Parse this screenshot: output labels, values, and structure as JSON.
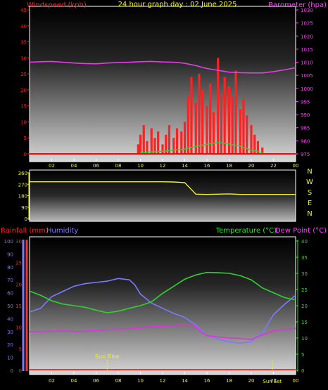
{
  "page": {
    "title": "24 hour graph day : 02 June 2025"
  },
  "colors": {
    "wind": "#ff0000",
    "gust": "#ff2020",
    "avg_wind": "#30d030",
    "barometer": "#e040e0",
    "direction": "#f0f030",
    "rain": "#ff3030",
    "humidity": "#7a7aff",
    "temperature": "#30d030",
    "dewpoint": "#e030e0",
    "sun": "#f0f030",
    "axis_text_left_red": "#ff2020",
    "axis_text_right_magenta": "#ff40ff",
    "axis_text_green": "#30e030",
    "axis_text_blue": "#7a7aff",
    "time_text": "#f0f030"
  },
  "chart_data": [
    {
      "type": "line",
      "name": "wind-barometer",
      "title": "24 hour graph day : 02 June 2025",
      "ylabel_left": "Windspeed (kph)",
      "ylabel_right": "Barometer (hpa)",
      "x_ticks": [
        "02",
        "04",
        "06",
        "08",
        "10",
        "12",
        "14",
        "16",
        "18",
        "20",
        "22",
        "00"
      ],
      "y_left_ticks": [
        0,
        5,
        10,
        15,
        20,
        25,
        30,
        35,
        40,
        45
      ],
      "y_left_range": [
        0,
        45
      ],
      "y_right_ticks": [
        975,
        980,
        985,
        990,
        995,
        1000,
        1005,
        1010,
        1015,
        1020,
        1025,
        1030
      ],
      "y_right_range": [
        975,
        1030
      ],
      "x_range": [
        0,
        24
      ],
      "series": [
        {
          "name": "Barometer",
          "axis": "right",
          "x": [
            0,
            1,
            2,
            3,
            4,
            5,
            6,
            7,
            8,
            9,
            10,
            11,
            12,
            13,
            14,
            15,
            16,
            17,
            18,
            19,
            20,
            21,
            22,
            23,
            24
          ],
          "values": [
            1010.0,
            1010.2,
            1010.3,
            1010.0,
            1009.7,
            1009.5,
            1009.4,
            1009.7,
            1009.9,
            1010.0,
            1010.2,
            1010.3,
            1010.1,
            1010.0,
            1009.6,
            1008.7,
            1007.6,
            1006.9,
            1006.2,
            1006.0,
            1005.9,
            1005.9,
            1006.4,
            1007.1,
            1007.9
          ]
        },
        {
          "name": "Wind gust",
          "axis": "left",
          "x": [
            9.8,
            10.0,
            10.3,
            10.6,
            11.0,
            11.3,
            11.6,
            12.0,
            12.3,
            12.6,
            13.0,
            13.3,
            13.7,
            14.0,
            14.3,
            14.6,
            15.0,
            15.3,
            15.6,
            16.0,
            16.3,
            16.6,
            17.0,
            17.3,
            17.6,
            18.0,
            18.3,
            18.6,
            19.0,
            19.3,
            19.6,
            20.0,
            20.3,
            20.6,
            21.0
          ],
          "values": [
            3,
            6,
            9,
            4,
            8,
            5,
            7,
            3,
            6,
            9,
            5,
            8,
            7,
            10,
            18,
            24,
            16,
            25,
            20,
            15,
            22,
            13,
            30,
            19,
            24,
            21,
            18,
            26,
            14,
            17,
            12,
            9,
            6,
            4,
            2
          ]
        },
        {
          "name": "Average wind",
          "axis": "left",
          "x": [
            10,
            12,
            14,
            15,
            16,
            17,
            18,
            19,
            20,
            21
          ],
          "values": [
            0.5,
            0.8,
            1.5,
            2.3,
            3.0,
            3.6,
            3.1,
            2.4,
            1.2,
            0.4
          ]
        }
      ]
    },
    {
      "type": "line",
      "name": "wind-direction",
      "y_ticks": [
        0,
        90,
        180,
        270,
        360
      ],
      "y_range": [
        0,
        360
      ],
      "compass_labels": [
        "N",
        "W",
        "S",
        "E",
        "N"
      ],
      "series": [
        {
          "name": "Direction",
          "x": [
            0,
            1,
            2,
            3,
            4,
            5,
            6,
            7,
            8,
            9,
            10,
            11,
            12,
            13,
            14,
            15,
            16,
            17,
            18,
            19,
            20,
            21,
            22,
            23,
            24
          ],
          "values": [
            290,
            290,
            290,
            290,
            290,
            290,
            290,
            290,
            290,
            290,
            290,
            290,
            290,
            288,
            283,
            192,
            190,
            192,
            194,
            190,
            190,
            190,
            190,
            190,
            190
          ]
        }
      ]
    },
    {
      "type": "line",
      "name": "temperature-humidity-rain",
      "ylabel_left": "Rainfall (mm)",
      "ylabel_left2": "Humidity",
      "ylabel_right": "Temperature (°C)",
      "ylabel_right2": "Dew Point (°C)",
      "humidity_ticks": [
        0,
        10,
        20,
        30,
        40,
        50,
        60,
        70,
        80,
        90,
        100
      ],
      "humidity_range": [
        0,
        100
      ],
      "rain_ticks": [
        0,
        5,
        10,
        15,
        20,
        25,
        30
      ],
      "rain_range": [
        0,
        30
      ],
      "temp_ticks": [
        0,
        5,
        10,
        15,
        20,
        25,
        30,
        35,
        40
      ],
      "temp_range": [
        0,
        40
      ],
      "annotations": [
        "Sun Rise",
        "Sun Set"
      ],
      "sunrise_x": 7.0,
      "sunset_x": 21.9,
      "series": [
        {
          "name": "Humidity",
          "axis": "humidity",
          "x": [
            0,
            1,
            2,
            3,
            4,
            5,
            6,
            7,
            8,
            9,
            9.5,
            10,
            11,
            12,
            13,
            14,
            15,
            16,
            17,
            18,
            19,
            20,
            20.5,
            21,
            22,
            23,
            24
          ],
          "values": [
            45,
            48,
            57,
            61,
            65,
            67,
            68,
            69,
            71,
            70,
            66,
            59,
            52,
            48,
            44,
            41,
            35,
            27,
            24,
            22,
            21,
            22,
            26,
            29,
            43,
            51,
            58
          ]
        },
        {
          "name": "Temperature",
          "axis": "temp",
          "x": [
            0,
            1,
            2,
            3,
            4,
            5,
            6,
            7,
            8,
            9,
            10,
            11,
            12,
            13,
            14,
            15,
            16,
            17,
            18,
            19,
            20,
            21,
            22,
            23,
            24
          ],
          "values": [
            24.5,
            23.2,
            21.5,
            20.5,
            20.0,
            19.5,
            18.6,
            17.8,
            18.3,
            19.2,
            20.0,
            21.2,
            23.8,
            26.0,
            28.2,
            29.5,
            30.3,
            30.2,
            30.0,
            29.3,
            28.0,
            25.5,
            24.0,
            22.5,
            21.8
          ]
        },
        {
          "name": "Dew Point",
          "axis": "temp",
          "x": [
            0,
            1,
            2,
            3,
            4,
            5,
            6,
            7,
            8,
            9,
            10,
            11,
            12,
            13,
            14,
            15,
            15.5,
            16,
            17,
            18,
            19,
            20,
            21,
            22,
            23,
            24
          ],
          "values": [
            12.0,
            12.0,
            12.1,
            12.2,
            12.0,
            12.1,
            12.3,
            12.5,
            12.8,
            13.0,
            13.3,
            13.5,
            13.6,
            13.8,
            14.3,
            13.5,
            11.8,
            10.8,
            10.3,
            10.0,
            9.9,
            9.5,
            11.0,
            12.2,
            12.6,
            13.0
          ]
        },
        {
          "name": "Rainfall",
          "axis": "rain",
          "x": [
            0,
            24
          ],
          "values": [
            0,
            0
          ]
        }
      ]
    }
  ]
}
